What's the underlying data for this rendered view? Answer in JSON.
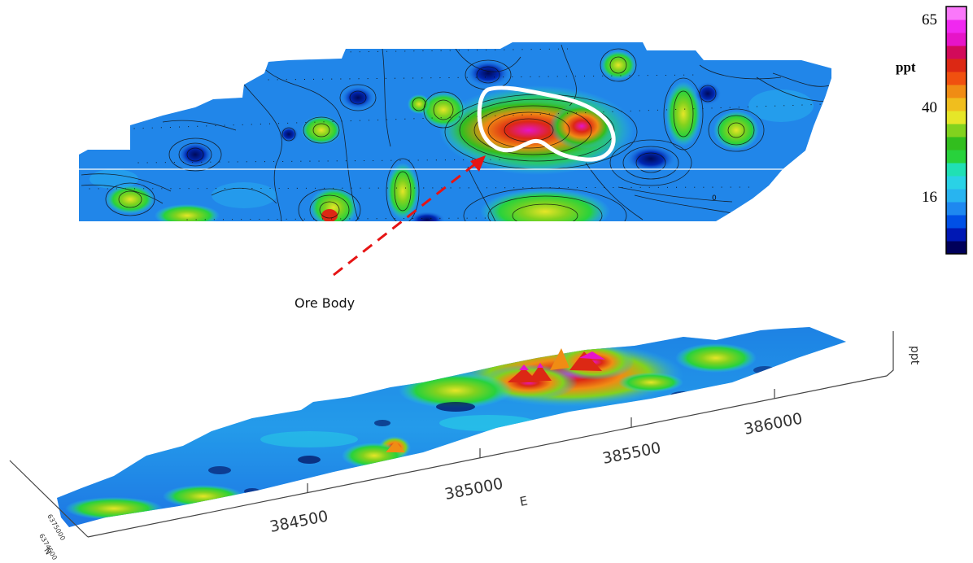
{
  "legend": {
    "unit": "ppt",
    "ticks": [
      "65",
      "40",
      "16"
    ],
    "colors": [
      "#00005a",
      "#0018b4",
      "#0050e6",
      "#1e88f0",
      "#28b4f0",
      "#2ad2e6",
      "#20e0b4",
      "#28d23c",
      "#32be1e",
      "#82d21e",
      "#e6e628",
      "#f0be1e",
      "#f08c14",
      "#f0500f",
      "#dc2814",
      "#d20a5a",
      "#e614c8",
      "#f028f0",
      "#fa78fa"
    ]
  },
  "annotation": {
    "label": "Ore Body",
    "arrow_color": "#e61414",
    "outline_color": "#ffffff"
  },
  "contour_map": {
    "line_label": "0"
  },
  "surface_3d": {
    "x_axis_title": "E",
    "x_ticks": [
      "384500",
      "385000",
      "385500",
      "386000"
    ],
    "z_axis_title": "ppt",
    "y_ticks": [
      "6375000",
      "6374500"
    ],
    "y_axis_title": "N"
  }
}
